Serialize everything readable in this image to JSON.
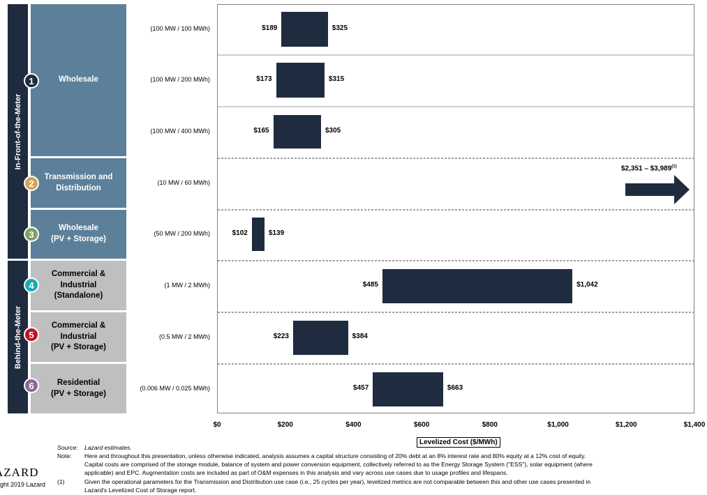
{
  "side_groups": [
    {
      "label": "In-Front-of-the-Meter"
    },
    {
      "label": "Behind-the-Meter"
    }
  ],
  "use_cases": [
    {
      "num": "1",
      "name": "Wholesale",
      "style": "blue",
      "circle_color": "#1f2c3f"
    },
    {
      "num": "2",
      "name": "Transmission and\nDistribution",
      "style": "blue",
      "circle_color": "#d4a55b"
    },
    {
      "num": "3",
      "name": "Wholesale\n(PV + Storage)",
      "style": "blue",
      "circle_color": "#7ea060"
    },
    {
      "num": "4",
      "name": "Commercial &\nIndustrial\n(Standalone)",
      "style": "gray",
      "circle_color": "#1aaab0"
    },
    {
      "num": "5",
      "name": "Commercial &\nIndustrial\n(PV + Storage)",
      "style": "gray",
      "circle_color": "#c0141c"
    },
    {
      "num": "6",
      "name": "Residential\n(PV + Storage)",
      "style": "gray",
      "circle_color": "#8a6a95"
    }
  ],
  "chart_data": {
    "type": "bar",
    "orientation": "horizontal-floating",
    "categories": [
      "(100 MW / 100 MWh)",
      "(100 MW / 200 MWh)",
      "(100 MW / 400 MWh)",
      "(10 MW / 60 MWh)",
      "(50 MW / 200 MWh)",
      "(1 MW / 2 MWh)",
      "(0.5 MW / 2 MWh)",
      "(0.006 MW / 0.025 MWh)"
    ],
    "ranges": [
      {
        "low": 189,
        "high": 325,
        "low_label": "$189",
        "high_label": "$325"
      },
      {
        "low": 173,
        "high": 315,
        "low_label": "$173",
        "high_label": "$315"
      },
      {
        "low": 165,
        "high": 305,
        "low_label": "$165",
        "high_label": "$305"
      },
      {
        "low": 2351,
        "high": 3989,
        "range_label": "$2,351 – $3,989",
        "footnote": "(1)",
        "off_scale": true
      },
      {
        "low": 102,
        "high": 139,
        "low_label": "$102",
        "high_label": "$139"
      },
      {
        "low": 485,
        "high": 1042,
        "low_label": "$485",
        "high_label": "$1,042"
      },
      {
        "low": 223,
        "high": 384,
        "low_label": "$223",
        "high_label": "$384"
      },
      {
        "low": 457,
        "high": 663,
        "low_label": "$457",
        "high_label": "$663"
      }
    ],
    "xlim": [
      0,
      1400
    ],
    "xticks": [
      "$0",
      "$200",
      "$400",
      "$600",
      "$800",
      "$1,000",
      "$1,200",
      "$1,400"
    ],
    "xlabel": "Levelized Cost ($/MWh)",
    "bar_color": "#1f2c3f"
  },
  "notes": {
    "source_label": "Source:",
    "source_text": "Lazard estimates.",
    "note_label": "Note:",
    "note_text_1": "Here and throughout this presentation, unless otherwise indicated, analysis assumes a capital structure consisting of 20% debt at an 8% interest rate and 80% equity at a 12% cost of equity.",
    "note_text_2": "Capital costs are comprised of the storage module, balance of system and power conversion equipment, collectively referred to as the Energy Storage System (\"ESS\"), solar equipment (where",
    "note_text_3": "applicable) and EPC. Augmentation costs are included as part of O&M expenses in this analysis and vary across use cases due to usage profiles and lifespans.",
    "fn_label": "(1)",
    "fn_text_1": "Given the operational parameters for the Transmission and Distribution use case (i.e., 25 cycles per year), levelized metrics are not comparable between this and other use cases presented in",
    "fn_text_2": "Lazard's Levelized Cost of Storage report."
  },
  "branding": {
    "logo": "AZARD",
    "copyright": "ght 2019 Lazard"
  }
}
